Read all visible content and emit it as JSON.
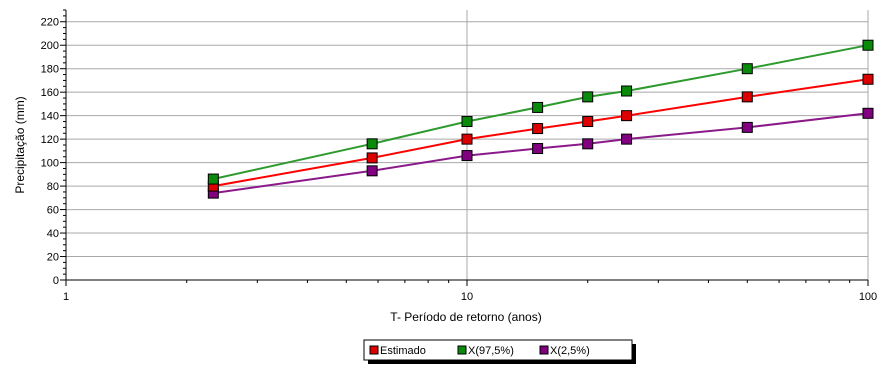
{
  "chart_data": {
    "type": "line",
    "xlabel": "T- Período de retorno (anos)",
    "ylabel": "Precipitação (mm)",
    "xscale": "log",
    "xlim": [
      1,
      100
    ],
    "ylim": [
      0,
      230
    ],
    "xticks": [
      1,
      10,
      100
    ],
    "yticks": [
      0,
      20,
      40,
      60,
      80,
      100,
      120,
      140,
      160,
      180,
      200,
      220
    ],
    "grid": true,
    "legend_position": "bottom-center",
    "series": [
      {
        "name": "Estimado",
        "color": "#ff0000",
        "marker_color": "#dd0000",
        "x": [
          2.33,
          5.8,
          10,
          15,
          20,
          25,
          50,
          100
        ],
        "y": [
          80,
          104,
          120,
          129,
          135,
          140,
          156,
          171
        ]
      },
      {
        "name": "X(97,5%)",
        "color": "#2e9a2e",
        "marker_color": "#0a8a0a",
        "x": [
          2.33,
          5.8,
          10,
          15,
          20,
          25,
          50,
          100
        ],
        "y": [
          86,
          116,
          135,
          147,
          156,
          161,
          180,
          200
        ]
      },
      {
        "name": "X(2,5%)",
        "color": "#8a1a8a",
        "marker_color": "#800080",
        "x": [
          2.33,
          5.8,
          10,
          15,
          20,
          25,
          50,
          100
        ],
        "y": [
          74,
          93,
          106,
          112,
          116,
          120,
          130,
          142
        ]
      }
    ]
  }
}
